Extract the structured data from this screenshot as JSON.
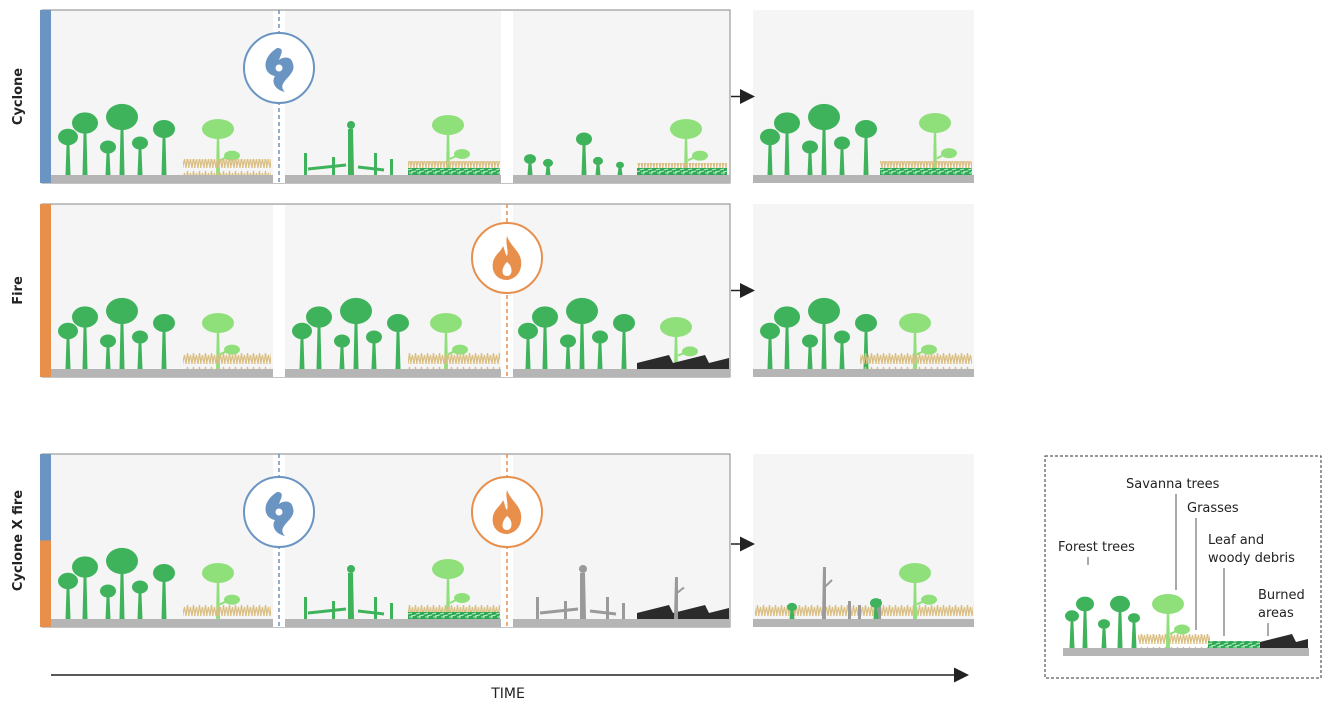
{
  "rows": [
    {
      "label": "Cyclone",
      "disturbances": [
        "cyclone"
      ]
    },
    {
      "label": "Fire",
      "disturbances": [
        "fire"
      ]
    },
    {
      "label": "Cyclone X fire",
      "disturbances": [
        "cyclone",
        "fire"
      ]
    }
  ],
  "axis": {
    "label": "TIME"
  },
  "legend": {
    "items": [
      {
        "key": "forest",
        "label": [
          "Forest trees"
        ]
      },
      {
        "key": "savanna",
        "label": [
          "Savanna trees"
        ]
      },
      {
        "key": "grass",
        "label": [
          "Grasses"
        ]
      },
      {
        "key": "debris",
        "label": [
          "Leaf and",
          "woody debris"
        ]
      },
      {
        "key": "burned",
        "label": [
          "Burned",
          "areas"
        ]
      }
    ]
  },
  "icons": {
    "cyclone": "cyclone-icon",
    "fire": "flame-icon"
  },
  "colors": {
    "forest": "#3fb35c",
    "savanna": "#8fe07a",
    "grass": "#e3cc94",
    "ground": "#b5b5b5",
    "cyclone": "#6a94c1",
    "fire": "#e88f4c",
    "burned": "#2b2b2b",
    "dead": "#9a9a9a",
    "panel": "#f5f5f5",
    "debris": "#2fa856"
  }
}
